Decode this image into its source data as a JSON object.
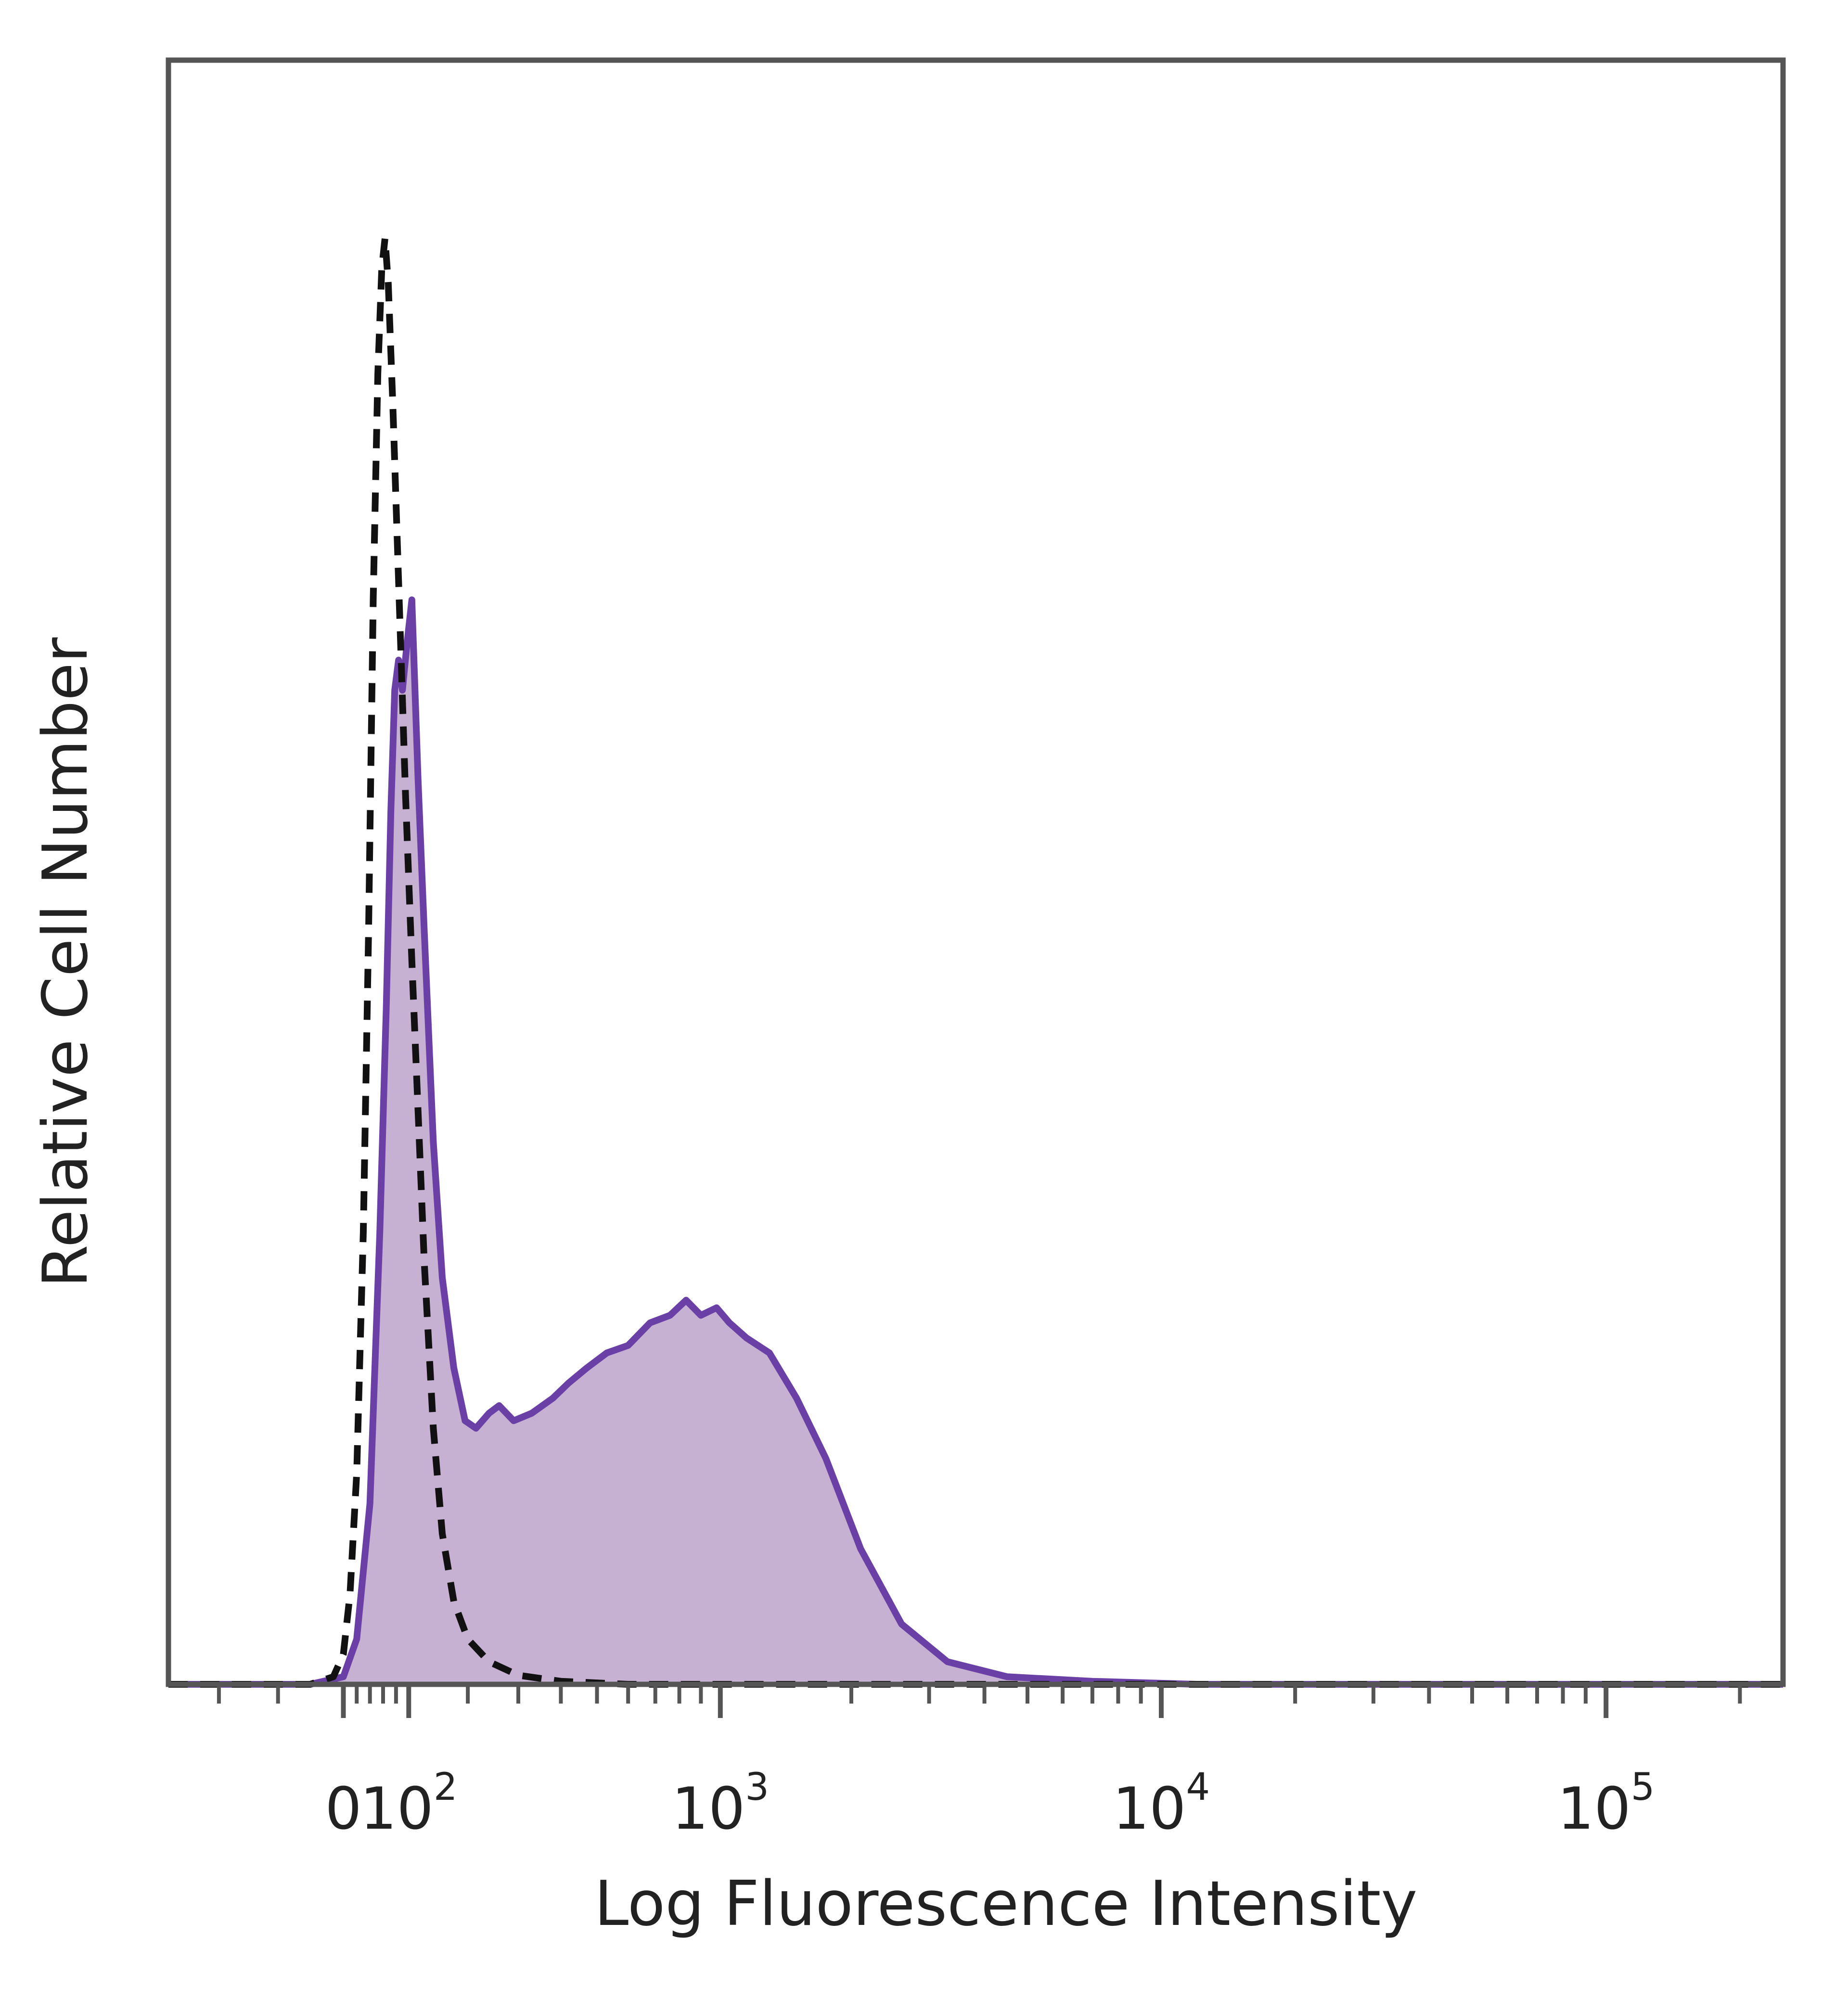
{
  "chart_data": {
    "type": "area",
    "xlabel": "Log Fluorescence Intensity",
    "ylabel": "Relative Cell Number",
    "x_scale": "biexponential",
    "x_ticks": [
      {
        "value": 0,
        "base": "0",
        "exp": ""
      },
      {
        "value": 100,
        "base": "10",
        "exp": "2"
      },
      {
        "value": 1000,
        "base": "10",
        "exp": "3"
      },
      {
        "value": 10000,
        "base": "10",
        "exp": "4"
      },
      {
        "value": 100000,
        "base": "10",
        "exp": "5"
      }
    ],
    "grid": false,
    "legend": "none",
    "colors": {
      "filled_fill": "#c7b1d3",
      "filled_line": "#6a3fa6",
      "control_line": "#111111",
      "frame": "#555555"
    },
    "series": [
      {
        "style": "filled solid",
        "points": [
          [
            -300,
            0
          ],
          [
            -150,
            0
          ],
          [
            -50,
            0
          ],
          [
            0,
            0.005
          ],
          [
            20,
            0.03
          ],
          [
            40,
            0.12
          ],
          [
            55,
            0.3
          ],
          [
            65,
            0.45
          ],
          [
            72,
            0.58
          ],
          [
            78,
            0.66
          ],
          [
            84,
            0.68
          ],
          [
            90,
            0.66
          ],
          [
            97,
            0.69
          ],
          [
            105,
            0.72
          ],
          [
            115,
            0.6
          ],
          [
            125,
            0.5
          ],
          [
            140,
            0.36
          ],
          [
            155,
            0.27
          ],
          [
            175,
            0.21
          ],
          [
            195,
            0.175
          ],
          [
            215,
            0.17
          ],
          [
            240,
            0.18
          ],
          [
            260,
            0.185
          ],
          [
            290,
            0.175
          ],
          [
            330,
            0.18
          ],
          [
            380,
            0.19
          ],
          [
            420,
            0.2
          ],
          [
            470,
            0.21
          ],
          [
            530,
            0.22
          ],
          [
            600,
            0.225
          ],
          [
            680,
            0.24
          ],
          [
            760,
            0.245
          ],
          [
            830,
            0.255
          ],
          [
            900,
            0.245
          ],
          [
            980,
            0.25
          ],
          [
            1050,
            0.24
          ],
          [
            1150,
            0.23
          ],
          [
            1300,
            0.22
          ],
          [
            1500,
            0.19
          ],
          [
            1750,
            0.15
          ],
          [
            2100,
            0.09
          ],
          [
            2600,
            0.04
          ],
          [
            3300,
            0.015
          ],
          [
            4500,
            0.005
          ],
          [
            7000,
            0.002
          ],
          [
            12000,
            0
          ],
          [
            50000,
            0
          ],
          [
            250000,
            0
          ]
        ]
      },
      {
        "style": "dashed",
        "points": [
          [
            -300,
            0
          ],
          [
            -150,
            0
          ],
          [
            -50,
            0
          ],
          [
            -15,
            0.005
          ],
          [
            0,
            0.02
          ],
          [
            10,
            0.06
          ],
          [
            20,
            0.14
          ],
          [
            30,
            0.3
          ],
          [
            38,
            0.5
          ],
          [
            45,
            0.72
          ],
          [
            52,
            0.87
          ],
          [
            58,
            0.94
          ],
          [
            63,
            0.96
          ],
          [
            68,
            0.93
          ],
          [
            75,
            0.85
          ],
          [
            85,
            0.72
          ],
          [
            95,
            0.59
          ],
          [
            105,
            0.48
          ],
          [
            115,
            0.38
          ],
          [
            125,
            0.28
          ],
          [
            140,
            0.17
          ],
          [
            155,
            0.1
          ],
          [
            175,
            0.055
          ],
          [
            200,
            0.03
          ],
          [
            240,
            0.015
          ],
          [
            300,
            0.006
          ],
          [
            400,
            0.002
          ],
          [
            600,
            0
          ],
          [
            250000,
            0
          ]
        ]
      }
    ]
  }
}
